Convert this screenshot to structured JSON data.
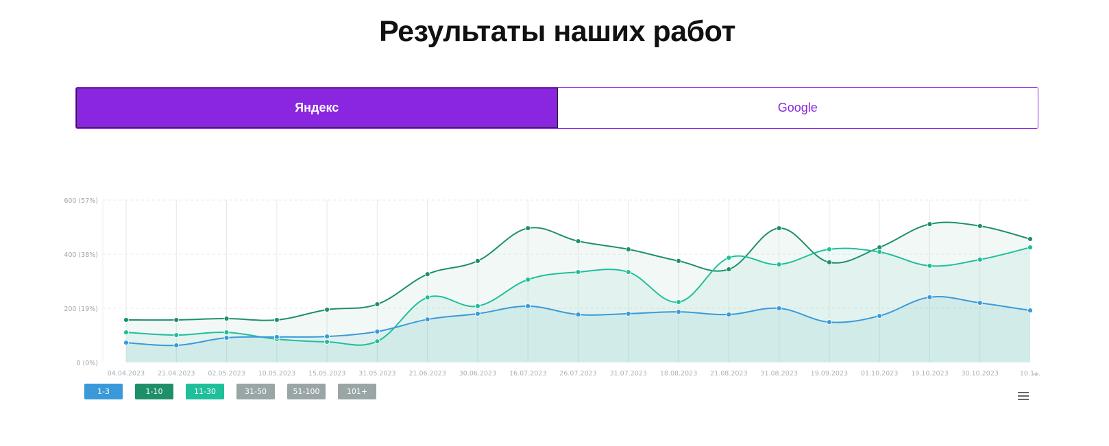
{
  "page_title": "Результаты наших работ",
  "tabs": [
    {
      "label": "Яндекс",
      "active": true
    },
    {
      "label": "Google",
      "active": false
    }
  ],
  "colors": {
    "accent": "#8a26e0",
    "top3": "#3a9ad9",
    "top10": "#1f8f6a",
    "top30": "#1fbf9a",
    "inactive": "#9aa5a5"
  },
  "chart_data": {
    "type": "area",
    "categories": [
      "04.04.2023",
      "21.04.2023",
      "02.05.2023",
      "10.05.2023",
      "15.05.2023",
      "31.05.2023",
      "21.06.2023",
      "30.06.2023",
      "16.07.2023",
      "26.07.2023",
      "31.07.2023",
      "18.08.2023",
      "21.08.2023",
      "31.08.2023",
      "19.09.2023",
      "01.10.2023",
      "19.10.2023",
      "30.10.2023",
      "10.1..."
    ],
    "y_ticks": [
      "0 (0%)",
      "200 (19%)",
      "400 (38%)",
      "600 (57%)"
    ],
    "ylim": [
      0,
      600
    ],
    "grid": true,
    "legend_placement": "bottom-left",
    "series": [
      {
        "name": "1-10",
        "color": "#1f8f6a",
        "values": [
          157,
          157,
          162,
          157,
          195,
          215,
          326,
          375,
          496,
          448,
          418,
          375,
          344,
          496,
          370,
          425,
          511,
          504,
          456
        ]
      },
      {
        "name": "11-30",
        "color": "#1fbf9a",
        "values": [
          111,
          101,
          111,
          86,
          76,
          78,
          240,
          208,
          306,
          334,
          334,
          223,
          387,
          362,
          418,
          408,
          357,
          380,
          425
        ]
      },
      {
        "name": "1-3",
        "color": "#3a9ad9",
        "values": [
          73,
          63,
          91,
          94,
          96,
          114,
          159,
          180,
          208,
          177,
          180,
          187,
          177,
          200,
          149,
          172,
          241,
          220,
          192
        ]
      }
    ],
    "legend": [
      {
        "label": "1-3",
        "color": "#3a9ad9"
      },
      {
        "label": "1-10",
        "color": "#1f8f6a"
      },
      {
        "label": "11-30",
        "color": "#1fbf9a"
      },
      {
        "label": "31-50",
        "color": "#9aa5a5"
      },
      {
        "label": "51-100",
        "color": "#9aa5a5"
      },
      {
        "label": "101+",
        "color": "#9aa5a5"
      }
    ]
  }
}
